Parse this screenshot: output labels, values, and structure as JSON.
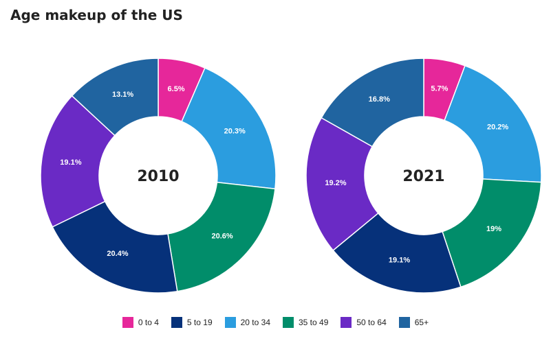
{
  "title": "Age makeup of the US",
  "legend": [
    {
      "label": "0 to 4",
      "color": "#e6279a"
    },
    {
      "label": "5 to 19",
      "color": "#06317a"
    },
    {
      "label": "20 to 34",
      "color": "#2b9ddf"
    },
    {
      "label": "35 to 49",
      "color": "#018d6a"
    },
    {
      "label": "50 to 64",
      "color": "#6a2ac5"
    },
    {
      "label": "65+",
      "color": "#2064a0"
    }
  ],
  "chart_data": [
    {
      "type": "pie",
      "title": "2010",
      "categories": [
        "0 to 4",
        "20 to 34",
        "35 to 49",
        "5 to 19",
        "50 to 64",
        "65+"
      ],
      "values": [
        6.5,
        20.3,
        20.6,
        20.4,
        19.1,
        13.1
      ],
      "labels": [
        "6.5%",
        "20.3%",
        "20.6%",
        "20.4%",
        "19.1%",
        "13.1%"
      ]
    },
    {
      "type": "pie",
      "title": "2021",
      "categories": [
        "0 to 4",
        "20 to 34",
        "35 to 49",
        "5 to 19",
        "50 to 64",
        "65+"
      ],
      "values": [
        5.7,
        20.2,
        19,
        19.1,
        19.2,
        16.8
      ],
      "labels": [
        "5.7%",
        "20.2%",
        "19%",
        "19.1%",
        "19.2%",
        "16.8%"
      ]
    }
  ]
}
